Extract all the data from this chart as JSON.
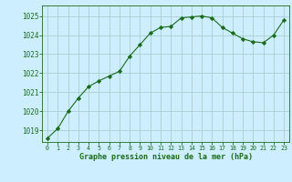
{
  "x": [
    0,
    1,
    2,
    3,
    4,
    5,
    6,
    7,
    8,
    9,
    10,
    11,
    12,
    13,
    14,
    15,
    16,
    17,
    18,
    19,
    20,
    21,
    22,
    23
  ],
  "y": [
    1018.6,
    1019.1,
    1020.0,
    1020.7,
    1021.3,
    1021.6,
    1021.85,
    1022.1,
    1022.9,
    1023.5,
    1024.1,
    1024.4,
    1024.45,
    1024.9,
    1024.95,
    1025.0,
    1024.9,
    1024.4,
    1024.1,
    1023.8,
    1023.65,
    1023.6,
    1024.0,
    1024.8
  ],
  "line_color": "#1a6b1a",
  "marker": "D",
  "marker_size": 2.2,
  "bg_color": "#cceeff",
  "grid_color": "#aacfcf",
  "xlabel": "Graphe pression niveau de la mer (hPa)",
  "xlabel_color": "#1a6b1a",
  "tick_color": "#1a6b1a",
  "ylim": [
    1018.4,
    1025.55
  ],
  "xlim": [
    -0.5,
    23.5
  ],
  "yticks": [
    1019,
    1020,
    1021,
    1022,
    1023,
    1024,
    1025
  ],
  "xticks": [
    0,
    1,
    2,
    3,
    4,
    5,
    6,
    7,
    8,
    9,
    10,
    11,
    12,
    13,
    14,
    15,
    16,
    17,
    18,
    19,
    20,
    21,
    22,
    23
  ]
}
